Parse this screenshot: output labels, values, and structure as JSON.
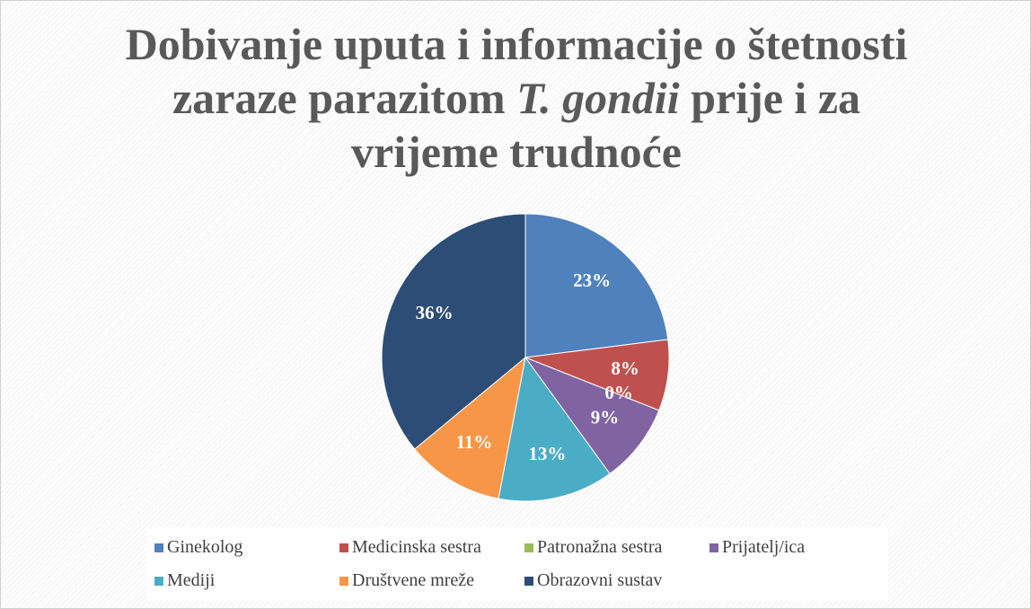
{
  "chart_data": {
    "type": "pie",
    "title": [
      "Dobivanje uputa i informacije o štetnosti zaraze parazitom ",
      "T. gondii",
      " prije i za vrijeme trudnoće"
    ],
    "categories": [
      "Ginekolog",
      "Medicinska sestra",
      "Patronažna sestra",
      "Prijatelj/ica",
      "Mediji",
      "Društvene mreže",
      "Obrazovni sustav"
    ],
    "values": [
      23,
      8,
      0,
      9,
      13,
      11,
      36
    ],
    "value_labels": [
      "23%",
      "8%",
      "0%",
      "9%",
      "13%",
      "11%",
      "36%"
    ],
    "colors": [
      "#4f81bd",
      "#c0504d",
      "#9bbb59",
      "#8064a2",
      "#4bacc6",
      "#f79646",
      "#2c4d75"
    ],
    "legend": "bottom"
  }
}
